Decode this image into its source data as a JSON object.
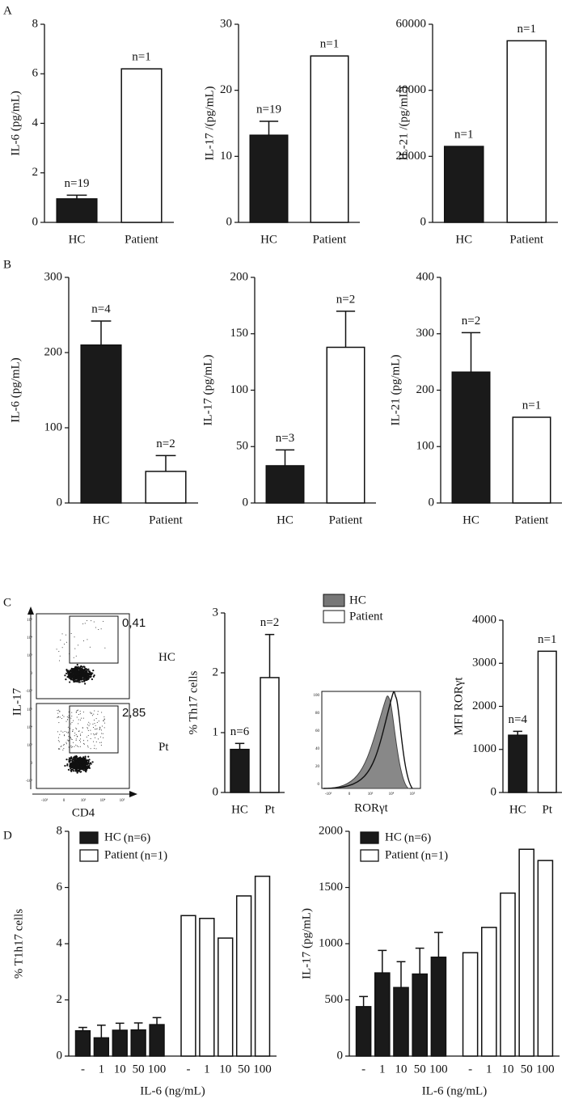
{
  "panels": [
    "A",
    "B",
    "C",
    "D"
  ],
  "chart_data": [
    {
      "type": "bar",
      "ylabel": "IL-6 (pg/mL)",
      "categories": [
        "HC",
        "Patient"
      ],
      "values": [
        0.95,
        6.2
      ],
      "errors": [
        0.15,
        null
      ],
      "value_labels": [
        "n=19",
        "n=1"
      ],
      "colors": [
        "#1a1a1a",
        "#ffffff"
      ],
      "ylim": [
        0,
        8
      ],
      "yticks": [
        0,
        2,
        4,
        6,
        8
      ]
    },
    {
      "type": "bar",
      "ylabel": "IL-17 /(pg/mL)",
      "categories": [
        "HC",
        "Patient"
      ],
      "values": [
        13.2,
        25.2
      ],
      "errors": [
        2.1,
        null
      ],
      "value_labels": [
        "n=19",
        "n=1"
      ],
      "colors": [
        "#1a1a1a",
        "#ffffff"
      ],
      "ylim": [
        0,
        30
      ],
      "yticks": [
        0,
        10,
        20,
        30
      ]
    },
    {
      "type": "bar",
      "ylabel": "IL-21 /(pg/mL)",
      "categories": [
        "HC",
        "Patient"
      ],
      "values": [
        23000,
        55000
      ],
      "errors": [
        null,
        null
      ],
      "value_labels": [
        "n=1",
        "n=1"
      ],
      "colors": [
        "#1a1a1a",
        "#ffffff"
      ],
      "ylim": [
        0,
        60000
      ],
      "yticks": [
        0,
        20000,
        40000,
        60000
      ]
    },
    {
      "type": "bar",
      "ylabel": "IL-6 (pg/mL)",
      "categories": [
        "HC",
        "Patient"
      ],
      "values": [
        210,
        42
      ],
      "errors": [
        32,
        21
      ],
      "value_labels": [
        "n=4",
        "n=2"
      ],
      "colors": [
        "#1a1a1a",
        "#ffffff"
      ],
      "ylim": [
        0,
        300
      ],
      "yticks": [
        0,
        100,
        200,
        300
      ]
    },
    {
      "type": "bar",
      "ylabel": "IL-17 (pg/mL)",
      "categories": [
        "HC",
        "Patient"
      ],
      "values": [
        33,
        138
      ],
      "errors": [
        14,
        32
      ],
      "value_labels": [
        "n=3",
        "n=2"
      ],
      "colors": [
        "#1a1a1a",
        "#ffffff"
      ],
      "ylim": [
        0,
        200
      ],
      "yticks": [
        0,
        50,
        100,
        150,
        200
      ]
    },
    {
      "type": "bar",
      "ylabel": "IL-21 (pg/mL)",
      "categories": [
        "HC",
        "Patient"
      ],
      "values": [
        232,
        152
      ],
      "errors": [
        70,
        null
      ],
      "value_labels": [
        "n=2",
        "n=1"
      ],
      "colors": [
        "#1a1a1a",
        "#ffffff"
      ],
      "ylim": [
        0,
        400
      ],
      "yticks": [
        0,
        100,
        200,
        300,
        400
      ]
    },
    {
      "type": "bar",
      "ylabel": "% Th17 cells",
      "categories": [
        "HC",
        "Pt"
      ],
      "values": [
        0.72,
        1.92
      ],
      "errors": [
        0.1,
        0.72
      ],
      "value_labels": [
        "n=6",
        "n=2"
      ],
      "colors": [
        "#1a1a1a",
        "#ffffff"
      ],
      "ylim": [
        0,
        3
      ],
      "yticks": [
        0,
        1,
        2,
        3
      ]
    },
    {
      "type": "bar",
      "ylabel": "MFI RORγt",
      "categories": [
        "HC",
        "Pt"
      ],
      "values": [
        1330,
        3280
      ],
      "errors": [
        90,
        null
      ],
      "value_labels": [
        "n=4",
        "n=1"
      ],
      "colors": [
        "#1a1a1a",
        "#ffffff"
      ],
      "ylim": [
        0,
        4000
      ],
      "yticks": [
        0,
        1000,
        2000,
        3000,
        4000
      ]
    },
    {
      "type": "grouped_bar",
      "ylabel": "% T1h17 cells",
      "xlabel": "IL-6 (ng/mL)",
      "categories": [
        "-",
        "1",
        "10",
        "50",
        "100"
      ],
      "series": [
        {
          "name": "HC",
          "n_label": "(n=6)",
          "color": "#1a1a1a",
          "values": [
            0.9,
            0.65,
            0.92,
            0.93,
            1.12
          ],
          "errors": [
            0.12,
            0.45,
            0.25,
            0.25,
            0.25
          ]
        },
        {
          "name": "Patient",
          "n_label": "(n=1)",
          "color": "#ffffff",
          "values": [
            5.0,
            4.9,
            4.2,
            5.7,
            6.4
          ],
          "errors": [
            null,
            null,
            null,
            null,
            null
          ]
        }
      ],
      "ylim": [
        0,
        8
      ],
      "yticks": [
        0,
        2,
        4,
        6,
        8
      ]
    },
    {
      "type": "grouped_bar",
      "ylabel": "IL-17 (pg/mL)",
      "xlabel": "IL-6 (ng/mL)",
      "categories": [
        "-",
        "1",
        "10",
        "50",
        "100"
      ],
      "series": [
        {
          "name": "HC",
          "n_label": "(n=6)",
          "color": "#1a1a1a",
          "values": [
            440,
            740,
            610,
            730,
            880
          ],
          "errors": [
            90,
            200,
            230,
            230,
            220
          ]
        },
        {
          "name": "Patient",
          "n_label": "(n=1)",
          "color": "#ffffff",
          "values": [
            920,
            1145,
            1450,
            1840,
            1740
          ],
          "errors": [
            null,
            null,
            null,
            null,
            null
          ]
        }
      ],
      "ylim": [
        0,
        2000
      ],
      "yticks": [
        0,
        500,
        1000,
        1500,
        2000
      ]
    }
  ],
  "flow": {
    "ylabel": "IL-17",
    "xlabel": "CD4",
    "gates": [
      "0,41",
      "2,85"
    ],
    "rows": [
      "HC",
      "Pt"
    ],
    "xticks": [
      "-10³",
      "0",
      "10³",
      "10⁴",
      "10⁵"
    ],
    "yticks": [
      "10⁵",
      "10⁴",
      "10³",
      "0",
      "-10³"
    ]
  },
  "histogram": {
    "legend": [
      "HC",
      "Patient"
    ],
    "xlabel": "RORγt",
    "yticks": [
      "100",
      "80",
      "60",
      "40",
      "20",
      "0"
    ],
    "xticks": [
      "-10³",
      "0",
      "10³",
      "10⁴",
      "10⁵"
    ]
  }
}
